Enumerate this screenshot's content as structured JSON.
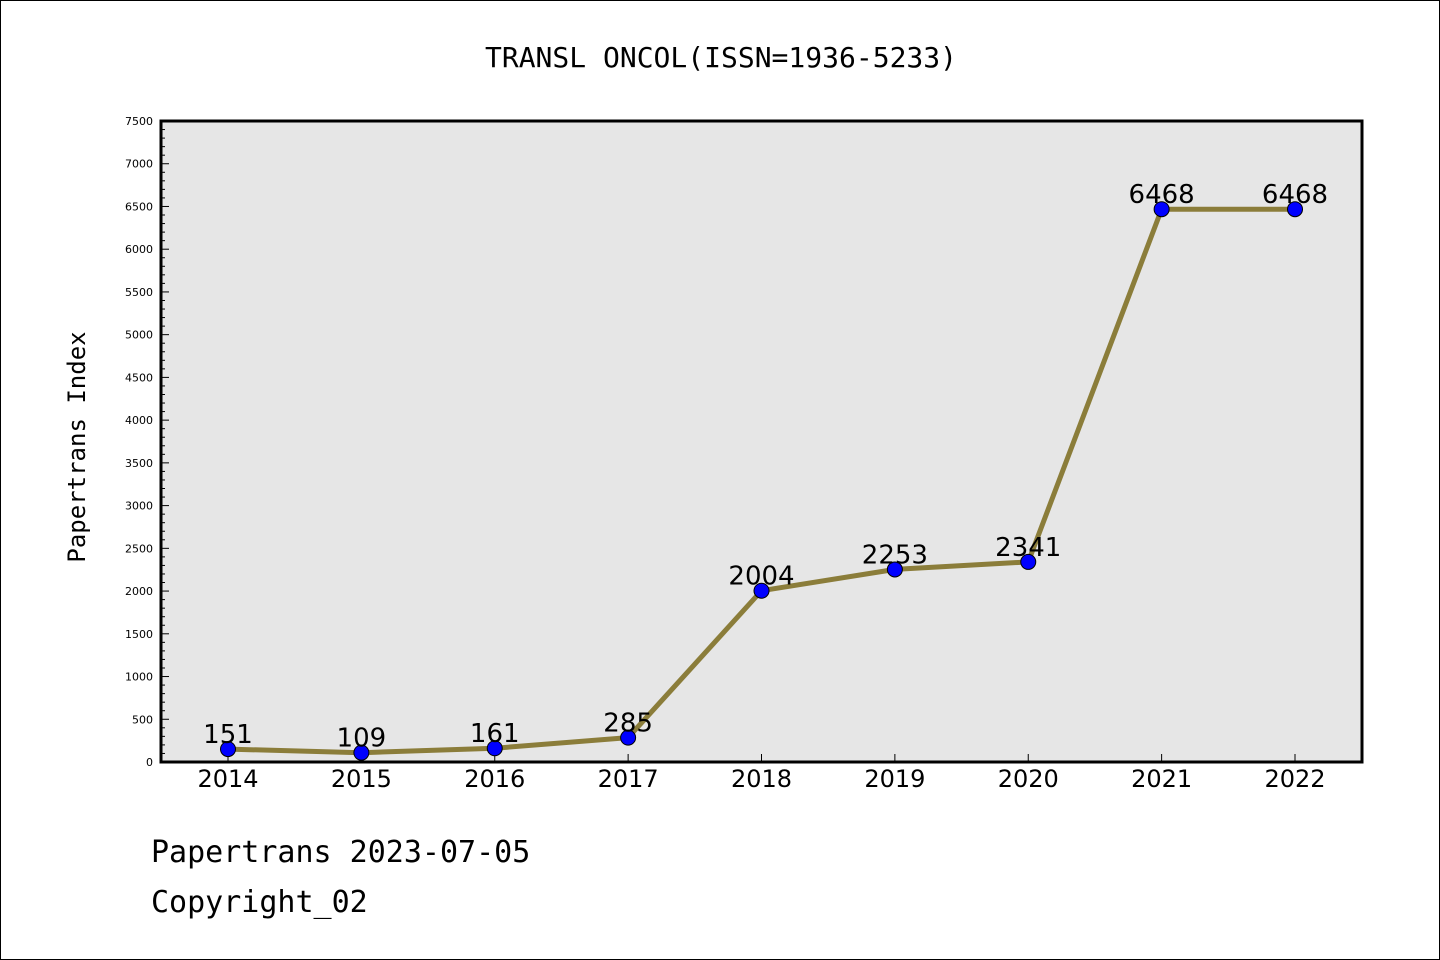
{
  "chart_data": {
    "type": "line",
    "title": "TRANSL ONCOL(ISSN=1936-5233)",
    "xlabel": "",
    "ylabel": "Papertrans Index",
    "categories": [
      "2014",
      "2015",
      "2016",
      "2017",
      "2018",
      "2019",
      "2020",
      "2021",
      "2022"
    ],
    "values": [
      151,
      109,
      161,
      285,
      2004,
      2253,
      2341,
      6468,
      6468
    ],
    "data_labels": [
      "151",
      "109",
      "161",
      "285",
      "2004",
      "2253",
      "2341",
      "6468",
      "6468"
    ],
    "ylim": [
      0,
      7500
    ],
    "yticks": [
      0,
      500,
      1000,
      1500,
      2000,
      2500,
      3000,
      3500,
      4000,
      4500,
      5000,
      5500,
      6000,
      6500,
      7000,
      7500
    ],
    "grid": false,
    "line_color": "#8B7D3A",
    "marker_color": "#0000FF",
    "plot_background": "#E6E6E6"
  },
  "footer": {
    "line1": "Papertrans 2023-07-05",
    "line2": "Copyright_02"
  }
}
